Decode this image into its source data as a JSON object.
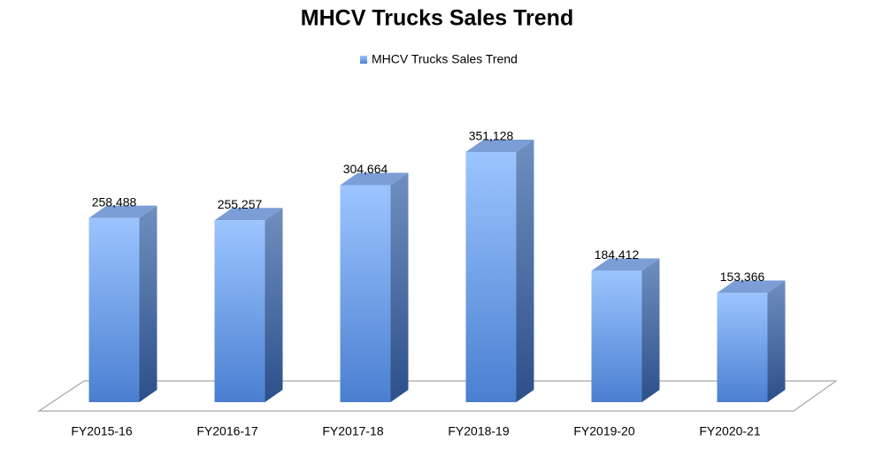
{
  "chart_data": {
    "type": "bar3d",
    "title": "MHCV Trucks Sales Trend",
    "categories": [
      "FY2015-16",
      "FY2016-17",
      "FY2017-18",
      "FY2018-19",
      "FY2019-20",
      "FY2020-21"
    ],
    "series": [
      {
        "name": "MHCV Trucks Sales Trend",
        "color": "#4a7fd0",
        "values": [
          258488,
          255257,
          304664,
          351128,
          184412,
          153366
        ],
        "value_labels": [
          "258,488",
          "255,257",
          "304,664",
          "351,128",
          "184,412",
          "153,366"
        ]
      }
    ],
    "legend": "top"
  }
}
